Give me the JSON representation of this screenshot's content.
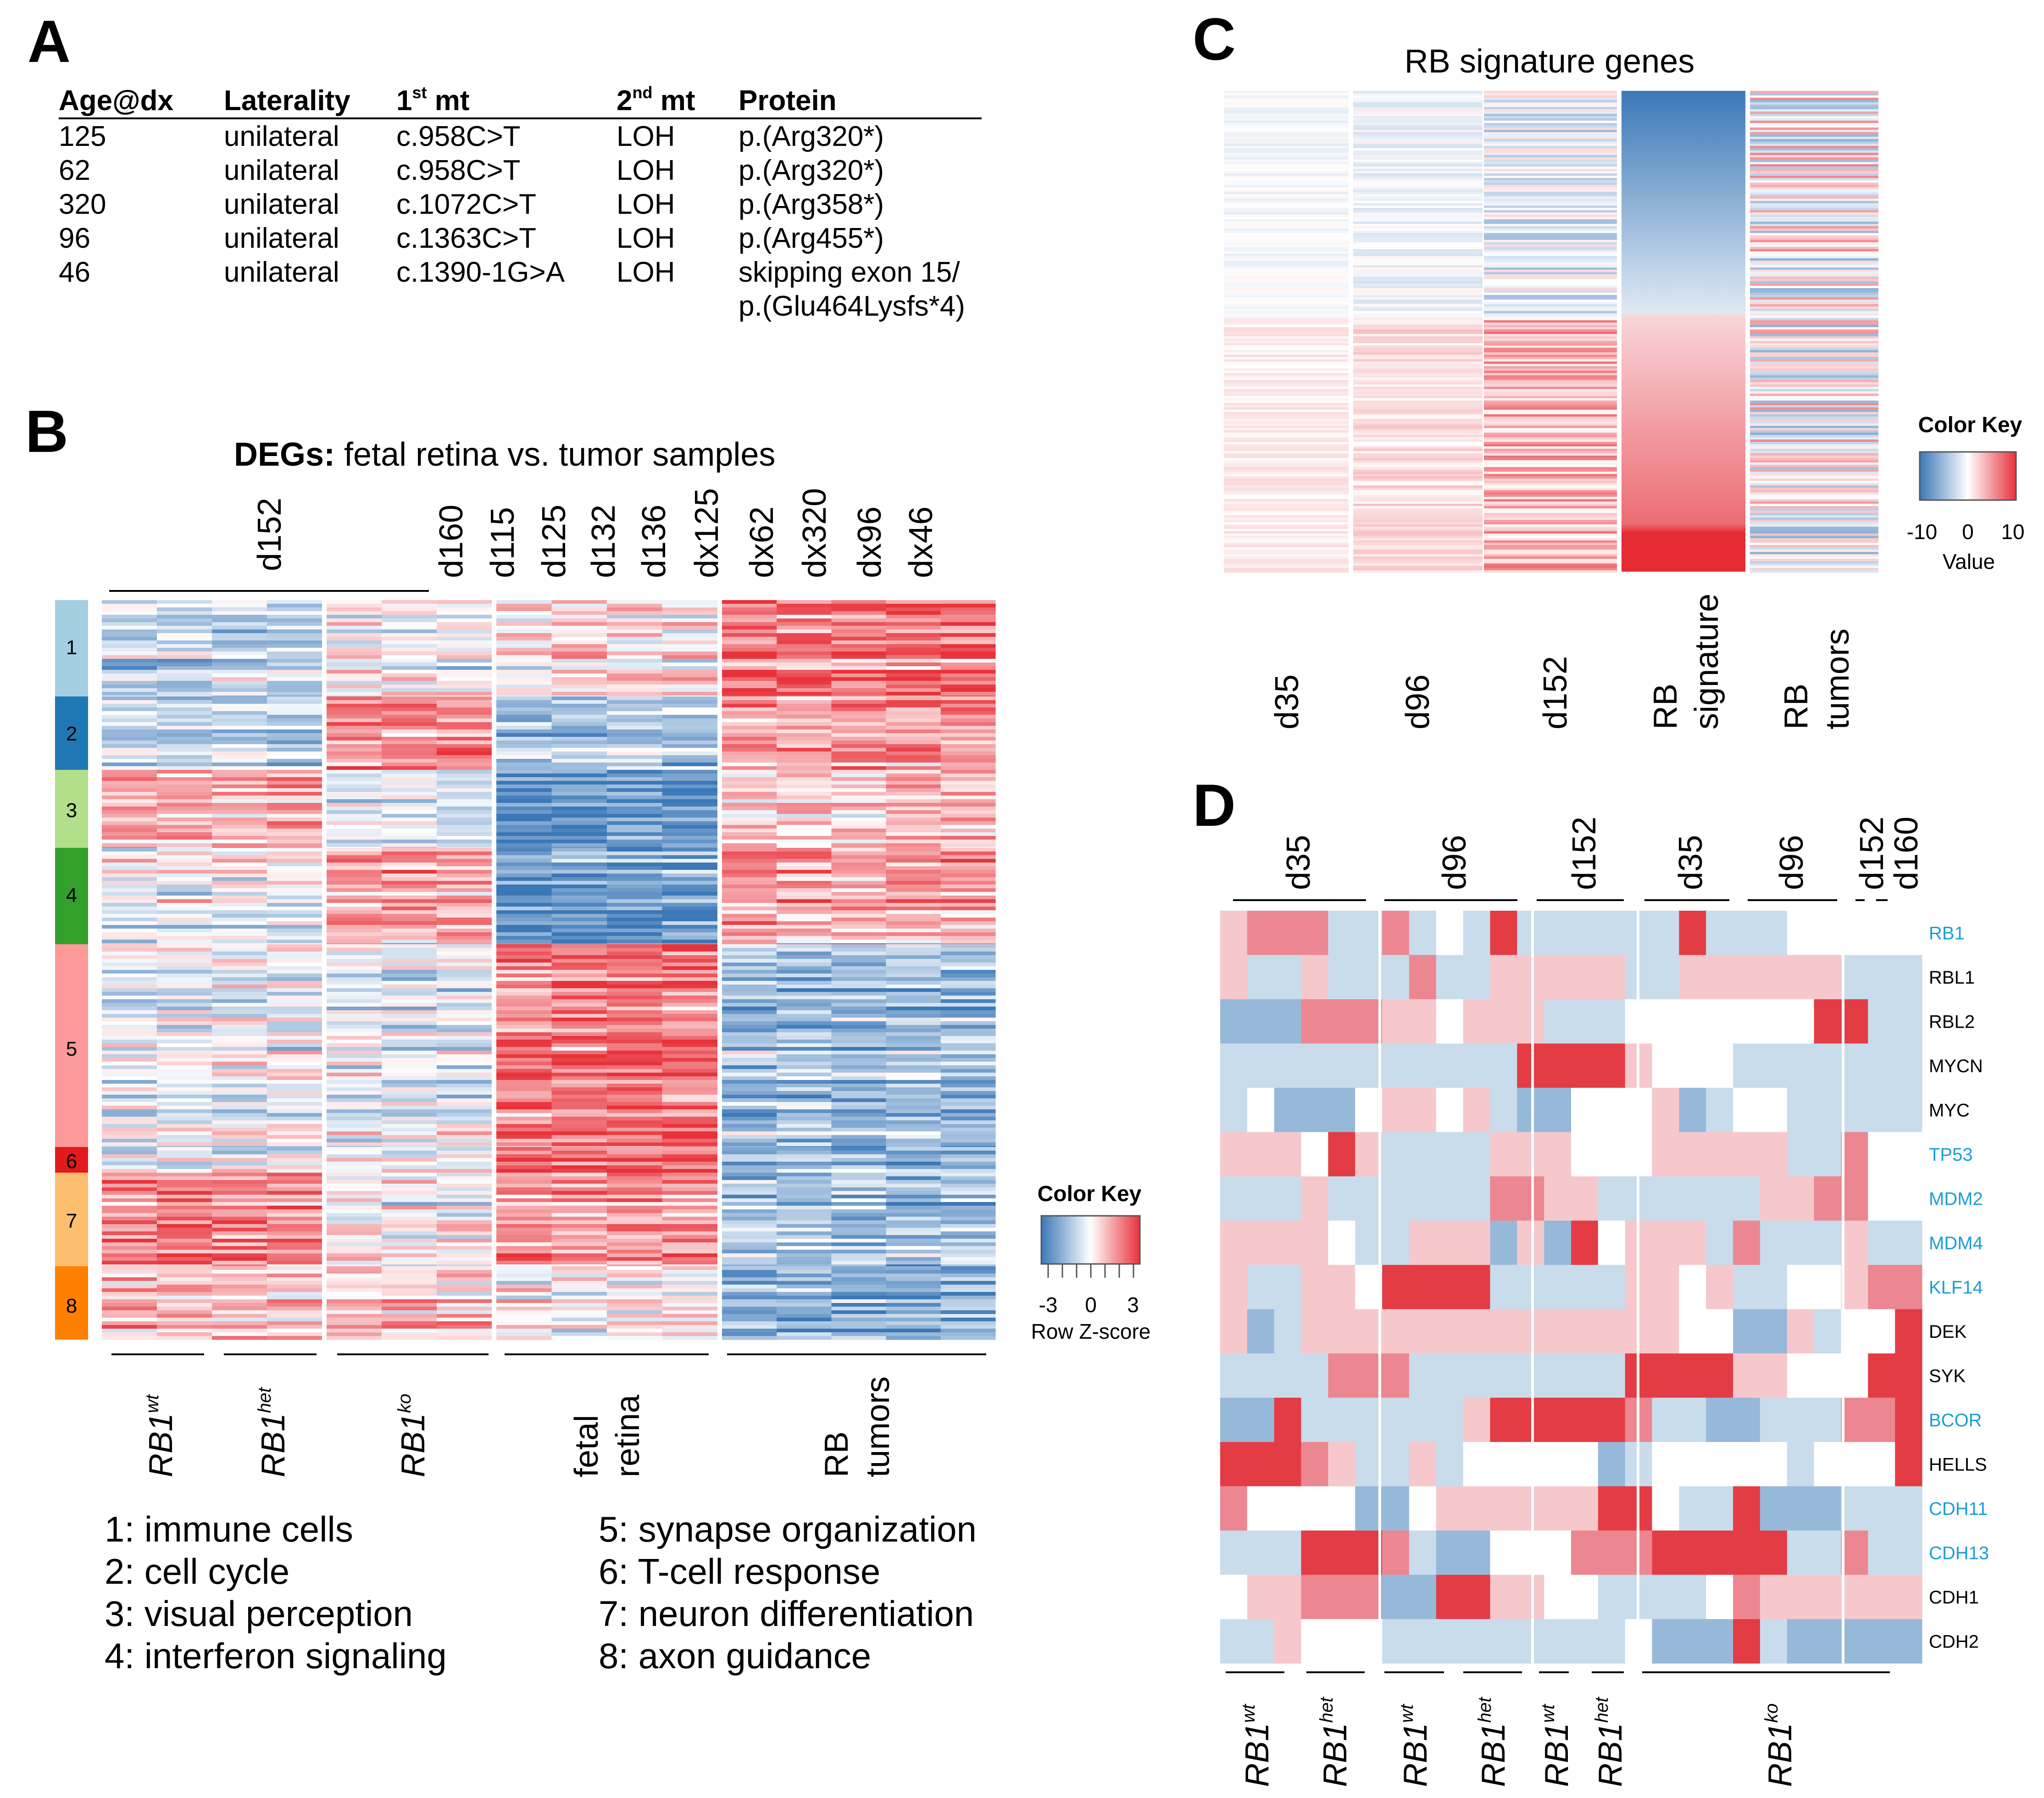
{
  "panels": {
    "A": "A",
    "B": "B",
    "C": "C",
    "D": "D"
  },
  "panel_a": {
    "headers": [
      "Age@dx",
      "Laterality",
      "1",
      "st",
      " mt",
      "2",
      "nd",
      " mt",
      "Protein"
    ],
    "rows": [
      [
        "125",
        "unilateral",
        "c.958C>T",
        "LOH",
        "p.(Arg320*)"
      ],
      [
        "62",
        "unilateral",
        "c.958C>T",
        "LOH",
        "p.(Arg320*)"
      ],
      [
        "320",
        "unilateral",
        "c.1072C>T",
        "LOH",
        "p.(Arg358*)"
      ],
      [
        "96",
        "unilateral",
        "c.1363C>T",
        "LOH",
        "p.(Arg455*)"
      ],
      [
        "46",
        "unilateral",
        "c.1390-1G>A",
        "LOH",
        "skipping exon 15/"
      ]
    ],
    "row_extra": "p.(Glu464Lysfs*4)"
  },
  "panel_b": {
    "title_bold": "DEGs:",
    "title_rest": " fetal retina vs. tumor samples",
    "top_group": "d152",
    "columns": [
      "d160",
      "d115",
      "d125",
      "d132",
      "d136",
      "dx125",
      "dx62",
      "dx320",
      "dx96",
      "dx46"
    ],
    "cluster_ids": [
      "1",
      "2",
      "3",
      "4",
      "5",
      "6",
      "7",
      "8"
    ],
    "cluster_colors": [
      "#a6cee3",
      "#1f78b4",
      "#b2df8a",
      "#33a02c",
      "#fb9a99",
      "#e31a1c",
      "#fdbf6f",
      "#ff7f00"
    ],
    "bottom_groups": [
      {
        "base": "RB1",
        "sup": "wt"
      },
      {
        "base": "RB1",
        "sup": "het"
      },
      {
        "base": "RB1",
        "sup": "ko"
      }
    ],
    "fetal_line1": "fetal",
    "fetal_line2": "retina",
    "tumor_line1": "RB",
    "tumor_line2": "tumors",
    "legend_left": [
      "1: immune cells",
      "2: cell cycle",
      "3: visual perception",
      "4: interferon signaling"
    ],
    "legend_right": [
      "5: synapse organization",
      "6: T-cell response",
      "7: neuron differentiation",
      "8: axon guidance"
    ],
    "color_key": {
      "title": "Color Key",
      "ticks": [
        "-3",
        "0",
        "3"
      ],
      "label": "Row Z-score"
    }
  },
  "panel_c": {
    "title": "RB signature genes",
    "columns": [
      "d35",
      "d96",
      "d152"
    ],
    "sig_line1": "RB",
    "sig_line2": "signature",
    "tum_line1": "RB",
    "tum_line2": "tumors",
    "color_key": {
      "title": "Color Key",
      "ticks": [
        "-10",
        "0",
        "10"
      ],
      "label": "Value"
    }
  },
  "panel_d": {
    "top_groups": [
      "d35",
      "d96",
      "d152",
      "d35",
      "d96",
      "d152",
      "d160"
    ],
    "genes": [
      "RB1",
      "RBL1",
      "RBL2",
      "MYCN",
      "MYC",
      "TP53",
      "MDM2",
      "MDM4",
      "KLF14",
      "DEK",
      "SYK",
      "BCOR",
      "HELLS",
      "CDH11",
      "CDH13",
      "CDH1",
      "CDH2"
    ],
    "gene_highlight": [
      true,
      false,
      false,
      false,
      false,
      true,
      true,
      true,
      true,
      false,
      false,
      true,
      false,
      true,
      true,
      false,
      false
    ],
    "highlight_color": "#1b9ed6",
    "bottom_groups": [
      {
        "base": "RB1",
        "sup": "wt"
      },
      {
        "base": "RB1",
        "sup": "het"
      },
      {
        "base": "RB1",
        "sup": "wt"
      },
      {
        "base": "RB1",
        "sup": "het"
      },
      {
        "base": "RB1",
        "sup": "wt"
      },
      {
        "base": "RB1",
        "sup": "het"
      },
      {
        "base": "RB1",
        "sup": "ko"
      }
    ]
  },
  "colors": {
    "red_strong": "#e8323a",
    "blue_strong": "#3b78b8",
    "light_red": "#f7c8cc",
    "light_blue": "#c9dcec"
  }
}
